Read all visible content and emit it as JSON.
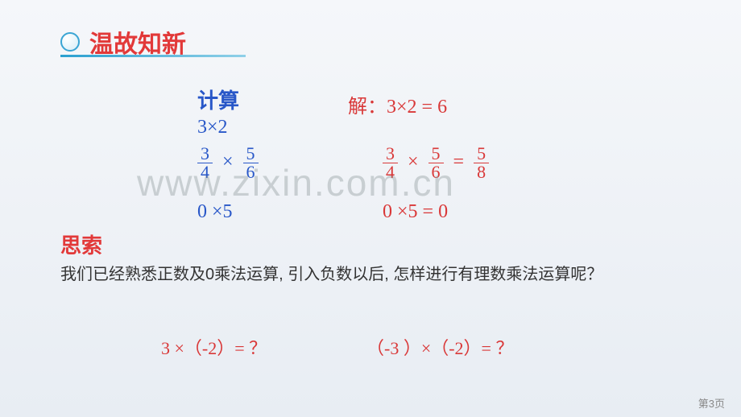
{
  "header": {
    "title": "温故知新"
  },
  "calc": {
    "label": "计算",
    "expr1": "3×2",
    "expr2_n1": "3",
    "expr2_d1": "4",
    "expr2_op": "×",
    "expr2_n2": "5",
    "expr2_d2": "6",
    "expr3": "0 ×5"
  },
  "solve": {
    "label": "解：3×2 = 6",
    "expr2_n1": "3",
    "expr2_d1": "4",
    "expr2_op": "×",
    "expr2_n2": "5",
    "expr2_d2": "6",
    "expr2_eq": "=",
    "expr2_rn": "5",
    "expr2_rd": "8",
    "expr3": "0 ×5 = 0"
  },
  "think": {
    "label": "思索",
    "text": "我们已经熟悉正数及0乘法运算, 引入负数以后, 怎样进行有理数乘法运算呢？"
  },
  "bottom": {
    "q1": "3 ×（-2）= ？",
    "q2": "（-3 ）×（-2）= ？"
  },
  "watermark": "www.zixin.com.cn",
  "page": "第3页"
}
